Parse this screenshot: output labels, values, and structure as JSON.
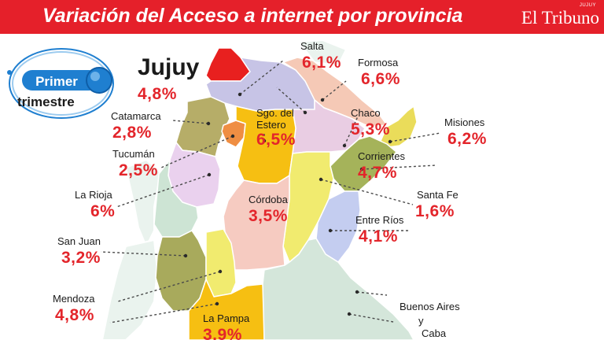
{
  "header": {
    "title": "Variación del Acceso a internet por provincia",
    "brand_name": "El Tribuno",
    "brand_sub": "JUJUY"
  },
  "badge": {
    "line1": "Primer",
    "line2": "trimestre"
  },
  "colors": {
    "header": "#e5202a",
    "value_text": "#e3252b",
    "badge_blue": "#1f7fd0"
  },
  "chart_data": {
    "type": "map",
    "title": "Variación del Acceso a internet por provincia",
    "subtitle": "Primer trimestre",
    "unit": "%",
    "provinces": [
      {
        "name": "Jujuy",
        "value": 4.8,
        "display": "4,8%",
        "highlight": true,
        "color": "#e8201f"
      },
      {
        "name": "Salta",
        "value": 6.1,
        "display": "6,1%",
        "color": "#c7c4e6"
      },
      {
        "name": "Formosa",
        "value": 6.6,
        "display": "6,6%",
        "color": "#f5c9b6"
      },
      {
        "name": "Catamarca",
        "value": 2.8,
        "display": "2,8%",
        "color": "#b6ad68"
      },
      {
        "name": "Sgo. del Estero",
        "value": 6.5,
        "display": "6,5%",
        "color": "#f6bf12"
      },
      {
        "name": "Chaco",
        "value": 5.3,
        "display": "5,3%",
        "color": "#e9cde3"
      },
      {
        "name": "Misiones",
        "value": 6.2,
        "display": "6,2%",
        "color": "#eadc5a"
      },
      {
        "name": "Tucumán",
        "value": 2.5,
        "display": "2,5%",
        "color": "#ef8e43"
      },
      {
        "name": "Corrientes",
        "value": 4.7,
        "display": "4,7%",
        "color": "#a5b35a"
      },
      {
        "name": "La Rioja",
        "value": 6,
        "display": "6%",
        "color": "#ead1ee"
      },
      {
        "name": "Santa Fe",
        "value": 1.6,
        "display": "1,6%",
        "color": "#f1eb6f"
      },
      {
        "name": "Córdoba",
        "value": 3.5,
        "display": "3,5%",
        "color": "#f6cbc1"
      },
      {
        "name": "Entre Ríos",
        "value": 4.1,
        "display": "4,1%",
        "color": "#c4cdf0"
      },
      {
        "name": "San Juan",
        "value": 3.2,
        "display": "3,2%",
        "color": "#cde4d4"
      },
      {
        "name": "Mendoza",
        "value": 4.8,
        "display": "4,8%",
        "color": "#a8aa5c"
      },
      {
        "name": "La Pampa",
        "value": 3.9,
        "display": "3,9%",
        "color": "#f6bf12"
      },
      {
        "name": "Buenos Aires y Caba",
        "value": null,
        "display": "",
        "color": "#d4e6da"
      }
    ],
    "extra_regions": [
      {
        "id": "san-luis",
        "color": "#f1eb6f"
      }
    ],
    "buenos_aires_lines": [
      "Buenos Aires",
      "y",
      "Caba"
    ]
  }
}
